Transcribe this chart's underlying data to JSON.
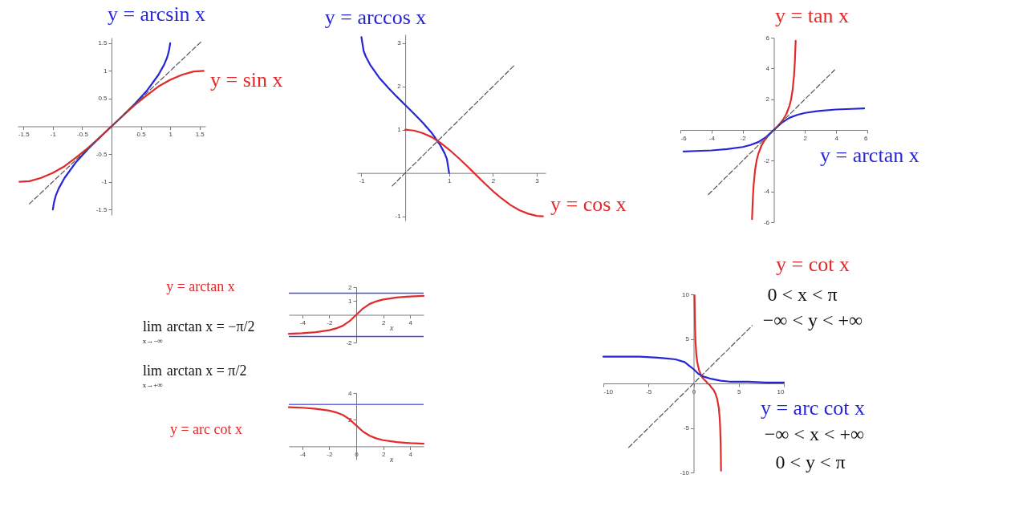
{
  "chart_data": [
    {
      "type": "line",
      "xlim": [
        -1.6,
        1.6
      ],
      "ylim": [
        -1.6,
        1.6
      ],
      "xticks": [
        -1.5,
        -1,
        -0.5,
        0.5,
        1,
        1.5
      ],
      "yticks": [
        -1.5,
        -1,
        -0.5,
        0.5,
        1,
        1.5
      ],
      "series": [
        {
          "name": "y = arcsin x",
          "color": "#2626d6",
          "x": [
            -1,
            -0.98,
            -0.95,
            -0.9,
            -0.8,
            -0.6,
            -0.4,
            -0.2,
            0,
            0.2,
            0.4,
            0.6,
            0.8,
            0.9,
            0.95,
            0.98,
            1
          ],
          "values": [
            -1.5,
            -1.37,
            -1.25,
            -1.12,
            -0.93,
            -0.64,
            -0.41,
            -0.2,
            0,
            0.2,
            0.41,
            0.64,
            0.93,
            1.12,
            1.25,
            1.37,
            1.5
          ]
        },
        {
          "name": "y = sin x",
          "color": "#e12a2a",
          "x": [
            -1.57,
            -1.4,
            -1.2,
            -1,
            -0.8,
            -0.6,
            -0.4,
            -0.2,
            0,
            0.2,
            0.4,
            0.6,
            0.8,
            1,
            1.2,
            1.4,
            1.57
          ],
          "values": [
            -1,
            -0.99,
            -0.93,
            -0.84,
            -0.72,
            -0.56,
            -0.39,
            -0.2,
            0,
            0.2,
            0.39,
            0.56,
            0.72,
            0.84,
            0.93,
            0.99,
            1
          ]
        },
        {
          "color": "#555555",
          "line_style": "dashed",
          "x": [
            -1.4,
            1.55
          ],
          "values": [
            -1.4,
            1.55
          ]
        }
      ]
    },
    {
      "type": "line",
      "xlim": [
        -1.1,
        3.2
      ],
      "ylim": [
        -1.1,
        3.2
      ],
      "xticks": [
        -1,
        1,
        2,
        3
      ],
      "yticks": [
        -1,
        1,
        2,
        3
      ],
      "series": [
        {
          "name": "y = arccos x",
          "color": "#2626d6",
          "x": [
            -1,
            -0.95,
            -0.9,
            -0.8,
            -0.6,
            -0.4,
            -0.2,
            0,
            0.2,
            0.4,
            0.6,
            0.8,
            0.9,
            0.95,
            1
          ],
          "values": [
            3.14,
            2.82,
            2.69,
            2.5,
            2.21,
            1.98,
            1.77,
            1.57,
            1.37,
            1.16,
            0.93,
            0.64,
            0.45,
            0.32,
            0
          ]
        },
        {
          "name": "y = cos x",
          "color": "#e12a2a",
          "x": [
            0,
            0.2,
            0.4,
            0.6,
            0.8,
            1,
            1.2,
            1.4,
            1.57,
            1.8,
            2,
            2.2,
            2.4,
            2.6,
            2.8,
            3,
            3.14
          ],
          "values": [
            1,
            0.98,
            0.92,
            0.83,
            0.7,
            0.54,
            0.36,
            0.17,
            0,
            -0.23,
            -0.42,
            -0.59,
            -0.74,
            -0.86,
            -0.94,
            -0.99,
            -1
          ]
        },
        {
          "color": "#555555",
          "line_style": "dashed",
          "x": [
            -0.3,
            2.5
          ],
          "values": [
            -0.3,
            2.5
          ]
        }
      ]
    },
    {
      "type": "line",
      "xlim": [
        -6,
        6
      ],
      "ylim": [
        -6,
        6
      ],
      "xticks": [
        -6,
        -4,
        -2,
        2,
        4,
        6
      ],
      "yticks": [
        -6,
        -4,
        -2,
        2,
        4,
        6
      ],
      "series": [
        {
          "name": "y = tan x",
          "color": "#e12a2a",
          "x": [
            -1.4,
            -1.35,
            -1.3,
            -1.2,
            -1.1,
            -1,
            -0.8,
            -0.6,
            -0.4,
            -0.2,
            0,
            0.2,
            0.4,
            0.6,
            0.8,
            1,
            1.1,
            1.2,
            1.3,
            1.35,
            1.4
          ],
          "values": [
            -5.8,
            -4.46,
            -3.6,
            -2.57,
            -1.96,
            -1.56,
            -1.03,
            -0.68,
            -0.42,
            -0.2,
            0,
            0.2,
            0.42,
            0.68,
            1.03,
            1.56,
            1.96,
            2.57,
            3.6,
            4.46,
            5.8
          ]
        },
        {
          "name": "y = arctan x",
          "color": "#2626d6",
          "x": [
            -5.8,
            -5,
            -4,
            -3,
            -2,
            -1.5,
            -1,
            -0.5,
            0,
            0.5,
            1,
            1.5,
            2,
            3,
            4,
            5,
            5.8
          ],
          "values": [
            -1.4,
            -1.37,
            -1.33,
            -1.25,
            -1.11,
            -0.98,
            -0.79,
            -0.46,
            0,
            0.46,
            0.79,
            0.98,
            1.11,
            1.25,
            1.33,
            1.37,
            1.4
          ]
        },
        {
          "color": "#555555",
          "line_style": "dashed",
          "x": [
            -4.2,
            3.9
          ],
          "values": [
            -4.2,
            3.9
          ]
        }
      ]
    },
    {
      "type": "line",
      "xlim": [
        -5,
        5
      ],
      "ylim": [
        -2,
        2
      ],
      "xticks": [
        -4,
        -2,
        2,
        4
      ],
      "yticks": [
        -2,
        1,
        2
      ],
      "xlabel": "x",
      "annotations": [
        "lim$_{x→−∞}$ arctan x = −π/2",
        "lim$_{x→+∞}$ arctan x = π/2"
      ],
      "ref_lines": [
        {
          "axis": "y",
          "value": 1.57,
          "color": "#4a4ad8"
        },
        {
          "axis": "y",
          "value": -1.57,
          "color": "#4a4ad8"
        }
      ],
      "series": [
        {
          "name": "y = arctan x",
          "color": "#e12a2a",
          "x": [
            -5,
            -4,
            -3,
            -2,
            -1.5,
            -1,
            -0.5,
            0,
            0.5,
            1,
            1.5,
            2,
            3,
            4,
            5
          ],
          "values": [
            -1.37,
            -1.33,
            -1.25,
            -1.11,
            -0.98,
            -0.79,
            -0.46,
            0,
            0.46,
            0.79,
            0.98,
            1.11,
            1.25,
            1.33,
            1.37
          ]
        }
      ]
    },
    {
      "type": "line",
      "xlim": [
        -5,
        5
      ],
      "ylim": [
        -1,
        4
      ],
      "xticks": [
        -4,
        -2,
        0,
        2,
        4
      ],
      "yticks": [
        2,
        4
      ],
      "xlabel": "x",
      "ref_lines": [
        {
          "axis": "y",
          "value": 3.14,
          "color": "#6a6ae0"
        }
      ],
      "series": [
        {
          "name": "y = arc cot x",
          "color": "#e12a2a",
          "x": [
            -5,
            -4,
            -3,
            -2,
            -1.5,
            -1,
            -0.5,
            0,
            0.5,
            1,
            1.5,
            2,
            3,
            4,
            5
          ],
          "values": [
            2.94,
            2.9,
            2.82,
            2.68,
            2.55,
            2.36,
            2.03,
            1.57,
            1.11,
            0.79,
            0.59,
            0.46,
            0.32,
            0.24,
            0.2
          ]
        }
      ]
    },
    {
      "type": "line",
      "xlim": [
        -10,
        10
      ],
      "ylim": [
        -10,
        10
      ],
      "xticks": [
        -10,
        -5,
        0,
        5,
        10
      ],
      "yticks": [
        -10,
        -5,
        5,
        10
      ],
      "annotations": [
        "0 < x < π",
        "−∞ < y < +∞",
        "−∞ < x < +∞",
        "0 < y < π"
      ],
      "series": [
        {
          "name": "y = cot x",
          "color": "#e12a2a",
          "x": [
            0.1,
            0.15,
            0.2,
            0.3,
            0.4,
            0.6,
            0.8,
            1,
            1.2,
            1.4,
            1.57,
            1.8,
            2,
            2.2,
            2.4,
            2.6,
            2.8,
            2.9,
            2.95,
            3,
            3.04
          ],
          "values": [
            9.9,
            6.6,
            4.9,
            3.2,
            2.4,
            1.5,
            1,
            0.6,
            0.4,
            0.2,
            0,
            -0.2,
            -0.5,
            -0.7,
            -1.1,
            -1.7,
            -2.8,
            -4.1,
            -5.2,
            -7,
            -9.8
          ]
        },
        {
          "name": "y = arc cot x",
          "color": "#2626d6",
          "x": [
            -10,
            -8,
            -6,
            -4,
            -3,
            -2,
            -1,
            -0.5,
            0,
            0.5,
            1,
            2,
            3,
            4,
            6,
            8,
            10
          ],
          "values": [
            3,
            3,
            3,
            2.9,
            2.8,
            2.7,
            2.4,
            2,
            1.6,
            1.1,
            0.8,
            0.5,
            0.3,
            0.2,
            0.2,
            0.1,
            0.1
          ]
        },
        {
          "color": "#555555",
          "line_style": "dashed",
          "x": [
            -7.2,
            6.5
          ],
          "values": [
            -7.2,
            6.5
          ]
        }
      ]
    }
  ]
}
